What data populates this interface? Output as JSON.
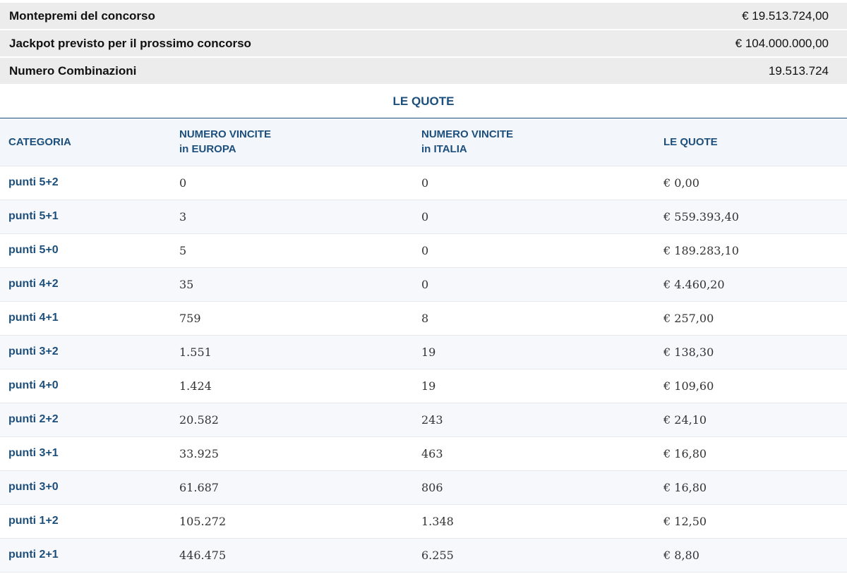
{
  "summary": [
    {
      "label": "Montepremi del concorso",
      "value": "€ 19.513.724,00"
    },
    {
      "label": "Jackpot previsto per il prossimo concorso",
      "value": "€ 104.000.000,00"
    },
    {
      "label": "Numero Combinazioni",
      "value": "19.513.724"
    }
  ],
  "section_title": "LE QUOTE",
  "table": {
    "headers": {
      "categoria": "CATEGORIA",
      "europa_line1": "NUMERO VINCITE",
      "europa_line2": "in EUROPA",
      "italia_line1": "NUMERO VINCITE",
      "italia_line2": "in ITALIA",
      "quote": "LE QUOTE"
    },
    "rows": [
      {
        "categoria": "punti 5+2",
        "europa": "0",
        "italia": "0",
        "quota": "€ 0,00"
      },
      {
        "categoria": "punti 5+1",
        "europa": "3",
        "italia": "0",
        "quota": "€ 559.393,40"
      },
      {
        "categoria": "punti 5+0",
        "europa": "5",
        "italia": "0",
        "quota": "€ 189.283,10"
      },
      {
        "categoria": "punti 4+2",
        "europa": "35",
        "italia": "0",
        "quota": "€ 4.460,20"
      },
      {
        "categoria": "punti 4+1",
        "europa": "759",
        "italia": "8",
        "quota": "€ 257,00"
      },
      {
        "categoria": "punti 3+2",
        "europa": "1.551",
        "italia": "19",
        "quota": "€ 138,30"
      },
      {
        "categoria": "punti 4+0",
        "europa": "1.424",
        "italia": "19",
        "quota": "€ 109,60"
      },
      {
        "categoria": "punti 2+2",
        "europa": "20.582",
        "italia": "243",
        "quota": "€ 24,10"
      },
      {
        "categoria": "punti 3+1",
        "europa": "33.925",
        "italia": "463",
        "quota": "€ 16,80"
      },
      {
        "categoria": "punti 3+0",
        "europa": "61.687",
        "italia": "806",
        "quota": "€ 16,80"
      },
      {
        "categoria": "punti 1+2",
        "europa": "105.272",
        "italia": "1.348",
        "quota": "€ 12,50"
      },
      {
        "categoria": "punti 2+1",
        "europa": "446.475",
        "italia": "6.255",
        "quota": "€ 8,80"
      }
    ]
  }
}
